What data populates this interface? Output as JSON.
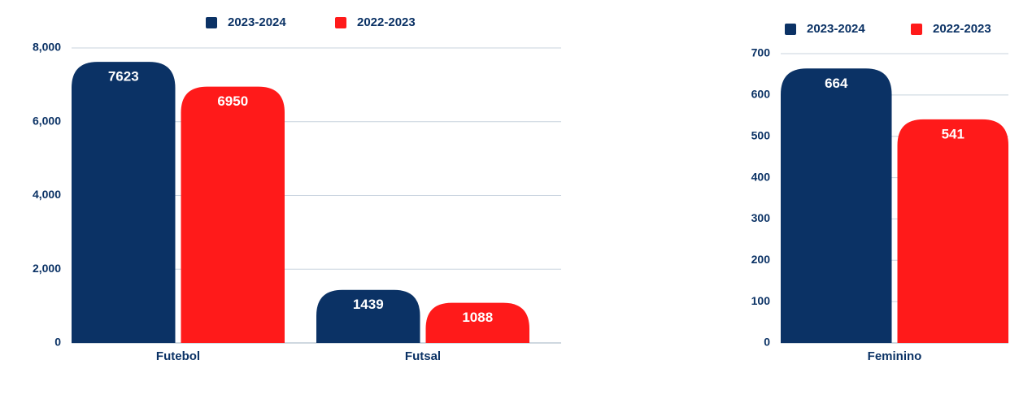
{
  "chart_data": [
    {
      "type": "bar",
      "categories": [
        "Futebol",
        "Futsal"
      ],
      "series": [
        {
          "name": "2023-2024",
          "color": "#0b3265",
          "values": [
            7623,
            1439
          ]
        },
        {
          "name": "2022-2023",
          "color": "#ff1a1a",
          "values": [
            6950,
            1088
          ]
        }
      ],
      "ylim": [
        0,
        8000
      ],
      "yticks": [
        0,
        {
          "value": 2000,
          "label": "2,000"
        },
        {
          "value": 4000,
          "label": "4,000"
        },
        {
          "value": 6000,
          "label": "6,000"
        },
        {
          "value": 8000,
          "label": "8,000"
        }
      ],
      "grid": true,
      "legend": "top"
    },
    {
      "type": "bar",
      "categories": [
        "Feminino"
      ],
      "series": [
        {
          "name": "2023-2024",
          "color": "#0b3265",
          "values": [
            664
          ]
        },
        {
          "name": "2022-2023",
          "color": "#ff1a1a",
          "values": [
            541
          ]
        }
      ],
      "ylim": [
        0,
        700
      ],
      "yticks": [
        0,
        100,
        200,
        300,
        400,
        500,
        600,
        700
      ],
      "grid": true,
      "legend": "top"
    }
  ]
}
